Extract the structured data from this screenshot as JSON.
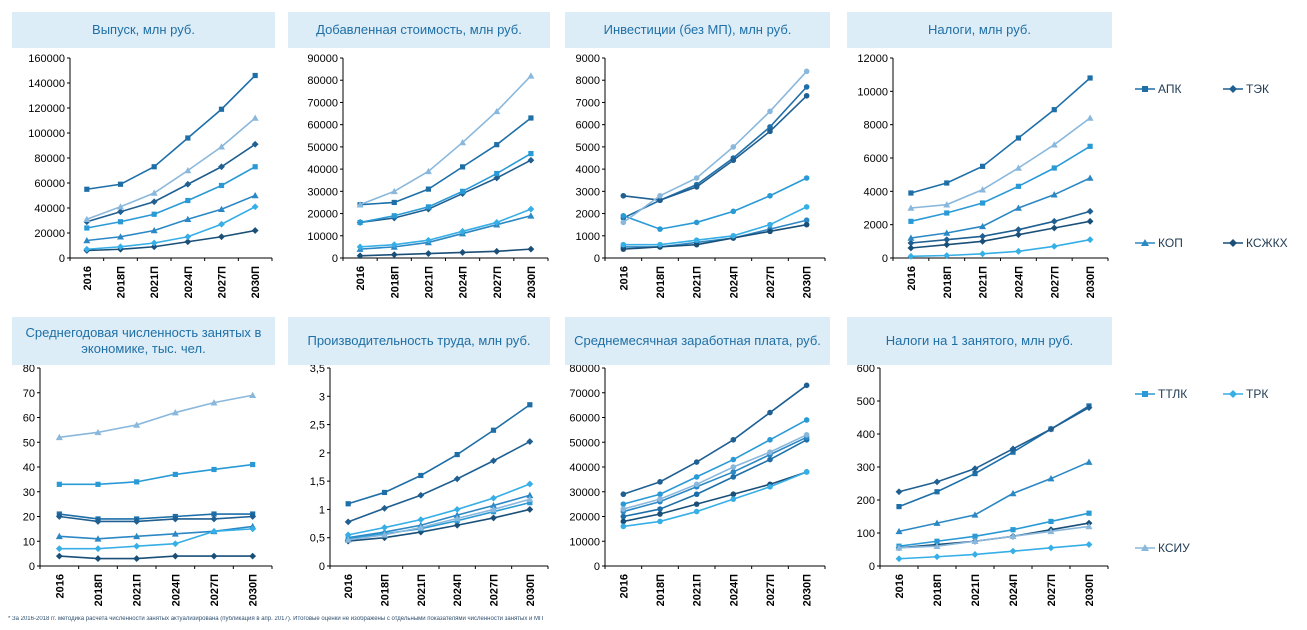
{
  "colors": {
    "АПК": "#1e6fa8",
    "ТЭК": "#1f5f91",
    "КОП": "#2c88c4",
    "КСЖКХ": "#1a4f78",
    "ТТЛК": "#2a9ad6",
    "ТРК": "#36aee6",
    "КСИУ": "#8ab8dc",
    "title_bg": "#dcedf7",
    "title_text": "#1f6fa6"
  },
  "legend": {
    "items": [
      "АПК",
      "ТЭК",
      "КОП",
      "КСЖКХ",
      "ТТЛК",
      "ТРК",
      "КСИУ"
    ]
  },
  "footnote": "* За 2016-2018 гг. методика расчета численности занятых актуализирована (публикация в апр. 2017). Итоговые оценки не изображены с отдельными показателями численности занятых и МП",
  "chart_data": [
    {
      "type": "line",
      "title": "Выпуск, млн руб.",
      "categories": [
        "2016",
        "2018П",
        "2021П",
        "2024П",
        "2027П",
        "2030П"
      ],
      "ylim": [
        0,
        160000
      ],
      "yticks": [
        "0",
        "20000",
        "40000",
        "60000",
        "80000",
        "100000",
        "120000",
        "140000",
        "160000"
      ],
      "grid": false,
      "series": [
        {
          "name": "АПК",
          "values": [
            55000,
            59000,
            73000,
            96000,
            119000,
            146000
          ]
        },
        {
          "name": "ТЭК",
          "values": [
            29000,
            37000,
            45000,
            59000,
            73000,
            91000
          ]
        },
        {
          "name": "КОП",
          "values": [
            14000,
            17000,
            22000,
            31000,
            39000,
            50000
          ]
        },
        {
          "name": "КСЖКХ",
          "values": [
            6000,
            7000,
            9000,
            13000,
            17000,
            22000
          ]
        },
        {
          "name": "ТТЛК",
          "values": [
            24000,
            29000,
            35000,
            46000,
            58000,
            73000
          ]
        },
        {
          "name": "ТРК",
          "values": [
            7000,
            9000,
            12000,
            17000,
            27000,
            41000
          ]
        },
        {
          "name": "КСИУ",
          "values": [
            31000,
            41000,
            52000,
            70000,
            89000,
            112000
          ]
        }
      ]
    },
    {
      "type": "line",
      "title": "Добавленная стоимость, млн руб.",
      "categories": [
        "2016",
        "2018П",
        "2021П",
        "2024П",
        "2027П",
        "2030П"
      ],
      "ylim": [
        0,
        90000
      ],
      "yticks": [
        "0",
        "10000",
        "20000",
        "30000",
        "40000",
        "50000",
        "60000",
        "70000",
        "80000",
        "90000"
      ],
      "grid": false,
      "series": [
        {
          "name": "АПК",
          "values": [
            24000,
            25000,
            31000,
            41000,
            51000,
            63000
          ]
        },
        {
          "name": "ТЭК",
          "values": [
            16000,
            18000,
            22000,
            29000,
            36000,
            44000
          ]
        },
        {
          "name": "КОП",
          "values": [
            4000,
            5000,
            7000,
            11000,
            15000,
            19000
          ]
        },
        {
          "name": "КСЖКХ",
          "values": [
            1000,
            1500,
            2000,
            2500,
            3000,
            4000
          ]
        },
        {
          "name": "ТТЛК",
          "values": [
            16000,
            19000,
            23000,
            30000,
            38000,
            47000
          ]
        },
        {
          "name": "ТРК",
          "values": [
            5000,
            6000,
            8000,
            12000,
            16000,
            22000
          ]
        },
        {
          "name": "КСИУ",
          "values": [
            24000,
            30000,
            39000,
            52000,
            66000,
            82000
          ]
        }
      ]
    },
    {
      "type": "line",
      "title": "Инвестиции (без МП), млн руб.",
      "categories": [
        "2016",
        "2018П",
        "2021П",
        "2024П",
        "2027П",
        "2030П"
      ],
      "ylim": [
        0,
        9000
      ],
      "yticks": [
        "0",
        "1000",
        "2000",
        "3000",
        "4000",
        "5000",
        "6000",
        "7000",
        "8000",
        "9000"
      ],
      "grid": false,
      "series": [
        {
          "name": "АПК",
          "values": [
            1800,
            2600,
            3300,
            4500,
            5900,
            7700
          ]
        },
        {
          "name": "ТЭК",
          "values": [
            2800,
            2600,
            3200,
            4400,
            5700,
            7300
          ]
        },
        {
          "name": "КОП",
          "values": [
            500,
            500,
            700,
            900,
            1300,
            1700
          ]
        },
        {
          "name": "КСЖКХ",
          "values": [
            400,
            500,
            600,
            900,
            1200,
            1500
          ]
        },
        {
          "name": "ТТЛК",
          "values": [
            1900,
            1300,
            1600,
            2100,
            2800,
            3600
          ]
        },
        {
          "name": "ТРК",
          "values": [
            600,
            600,
            800,
            1000,
            1500,
            2300
          ]
        },
        {
          "name": "КСИУ",
          "values": [
            1600,
            2800,
            3600,
            5000,
            6600,
            8400
          ]
        }
      ]
    },
    {
      "type": "line",
      "title": "Налоги, млн руб.",
      "categories": [
        "2016",
        "2018П",
        "2021П",
        "2024П",
        "2027П",
        "2030П"
      ],
      "ylim": [
        0,
        12000
      ],
      "yticks": [
        "0",
        "2000",
        "4000",
        "6000",
        "8000",
        "10000",
        "12000"
      ],
      "grid": false,
      "series": [
        {
          "name": "АПК",
          "values": [
            3900,
            4500,
            5500,
            7200,
            8900,
            10800
          ]
        },
        {
          "name": "ТЭК",
          "values": [
            900,
            1100,
            1300,
            1700,
            2200,
            2800
          ]
        },
        {
          "name": "КОП",
          "values": [
            1200,
            1500,
            1900,
            3000,
            3800,
            4800
          ]
        },
        {
          "name": "КСЖКХ",
          "values": [
            600,
            800,
            1000,
            1400,
            1800,
            2200
          ]
        },
        {
          "name": "ТТЛК",
          "values": [
            2200,
            2700,
            3300,
            4300,
            5400,
            6700
          ]
        },
        {
          "name": "ТРК",
          "values": [
            100,
            150,
            250,
            400,
            700,
            1100
          ]
        },
        {
          "name": "КСИУ",
          "values": [
            3000,
            3200,
            4100,
            5400,
            6800,
            8400
          ]
        }
      ]
    },
    {
      "type": "line",
      "title": "Среднегодовая численность занятых в экономике, тыс. чел.",
      "categories": [
        "2016",
        "2018П",
        "2021П",
        "2024П",
        "2027П",
        "2030П"
      ],
      "ylim": [
        0,
        80
      ],
      "yticks": [
        "0",
        "10",
        "20",
        "30",
        "40",
        "50",
        "60",
        "70",
        "80"
      ],
      "grid": false,
      "series": [
        {
          "name": "АПК",
          "values": [
            21,
            19,
            19,
            20,
            21,
            21
          ]
        },
        {
          "name": "ТЭК",
          "values": [
            20,
            18,
            18,
            19,
            19,
            20
          ]
        },
        {
          "name": "КОП",
          "values": [
            12,
            11,
            12,
            13,
            14,
            16
          ]
        },
        {
          "name": "КСЖКХ",
          "values": [
            4,
            3,
            3,
            4,
            4,
            4
          ]
        },
        {
          "name": "ТТЛК",
          "values": [
            33,
            33,
            34,
            37,
            39,
            41
          ]
        },
        {
          "name": "ТРК",
          "values": [
            7,
            7,
            8,
            9,
            14,
            15
          ]
        },
        {
          "name": "КСИУ",
          "values": [
            52,
            54,
            57,
            62,
            66,
            69
          ]
        }
      ]
    },
    {
      "type": "line",
      "title": "Производительность труда, млн руб.",
      "categories": [
        "2016",
        "2018П",
        "2021П",
        "2024П",
        "2027П",
        "2030П"
      ],
      "ylim": [
        0,
        3.5
      ],
      "yticks": [
        "0",
        "0,5",
        "1",
        "1,5",
        "2",
        "2,5",
        "3",
        "3,5"
      ],
      "grid": false,
      "series": [
        {
          "name": "АПК",
          "values": [
            1.1,
            1.3,
            1.6,
            1.97,
            2.4,
            2.85
          ]
        },
        {
          "name": "ТЭК",
          "values": [
            0.78,
            1.02,
            1.25,
            1.54,
            1.86,
            2.2
          ]
        },
        {
          "name": "КОП",
          "values": [
            0.5,
            0.6,
            0.72,
            0.9,
            1.07,
            1.25
          ]
        },
        {
          "name": "КСЖКХ",
          "values": [
            0.44,
            0.5,
            0.6,
            0.72,
            0.85,
            1.0
          ]
        },
        {
          "name": "ТТЛК",
          "values": [
            0.48,
            0.57,
            0.66,
            0.8,
            0.96,
            1.12
          ]
        },
        {
          "name": "ТРК",
          "values": [
            0.55,
            0.68,
            0.82,
            1.0,
            1.2,
            1.45
          ]
        },
        {
          "name": "КСИУ",
          "values": [
            0.46,
            0.55,
            0.68,
            0.84,
            1.0,
            1.18
          ]
        }
      ]
    },
    {
      "type": "line",
      "title": "Среднемесячная заработная плата, руб.",
      "categories": [
        "2016",
        "2018П",
        "2021П",
        "2024П",
        "2027П",
        "2030П"
      ],
      "ylim": [
        0,
        80000
      ],
      "yticks": [
        "0",
        "10000",
        "20000",
        "30000",
        "40000",
        "50000",
        "60000",
        "70000",
        "80000"
      ],
      "grid": false,
      "series": [
        {
          "name": "АПК",
          "values": [
            20000,
            23000,
            29000,
            36000,
            43000,
            51000
          ]
        },
        {
          "name": "ТЭК",
          "values": [
            29000,
            34000,
            42000,
            51000,
            62000,
            73000
          ]
        },
        {
          "name": "КОП",
          "values": [
            22000,
            26000,
            32000,
            38000,
            45000,
            52000
          ]
        },
        {
          "name": "КСЖКХ",
          "values": [
            18000,
            21000,
            25000,
            29000,
            33000,
            38000
          ]
        },
        {
          "name": "ТТЛК",
          "values": [
            25000,
            29000,
            36000,
            43000,
            51000,
            59000
          ]
        },
        {
          "name": "ТРК",
          "values": [
            16000,
            18000,
            22000,
            27000,
            32000,
            38000
          ]
        },
        {
          "name": "КСИУ",
          "values": [
            23000,
            27000,
            33000,
            40000,
            46000,
            53000
          ]
        }
      ]
    },
    {
      "type": "line",
      "title": "Налоги на 1 занятого, млн руб.",
      "categories": [
        "2016",
        "2018П",
        "2021П",
        "2024П",
        "2027П",
        "2030П"
      ],
      "ylim": [
        0,
        600
      ],
      "yticks": [
        "0",
        "100",
        "200",
        "300",
        "400",
        "500",
        "600"
      ],
      "grid": false,
      "series": [
        {
          "name": "АПК",
          "values": [
            180,
            225,
            280,
            345,
            415,
            485
          ]
        },
        {
          "name": "ТЭК",
          "values": [
            225,
            255,
            295,
            355,
            415,
            480
          ]
        },
        {
          "name": "КОП",
          "values": [
            105,
            130,
            155,
            220,
            265,
            315
          ]
        },
        {
          "name": "КСЖКХ",
          "values": [
            55,
            65,
            75,
            90,
            110,
            130
          ]
        },
        {
          "name": "ТТЛК",
          "values": [
            60,
            75,
            90,
            110,
            135,
            160
          ]
        },
        {
          "name": "ТРК",
          "values": [
            22,
            28,
            35,
            45,
            55,
            65
          ]
        },
        {
          "name": "КСИУ",
          "values": [
            55,
            60,
            75,
            90,
            105,
            120
          ]
        }
      ]
    }
  ]
}
